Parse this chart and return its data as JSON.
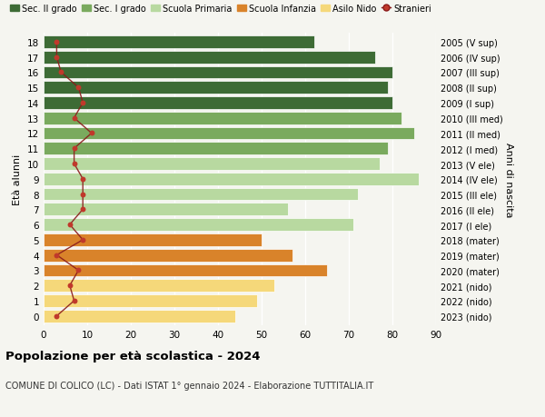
{
  "ages": [
    18,
    17,
    16,
    15,
    14,
    13,
    12,
    11,
    10,
    9,
    8,
    7,
    6,
    5,
    4,
    3,
    2,
    1,
    0
  ],
  "bar_values": [
    62,
    76,
    80,
    79,
    80,
    82,
    85,
    79,
    77,
    86,
    72,
    56,
    71,
    50,
    57,
    65,
    53,
    49,
    44
  ],
  "stranieri_values": [
    3,
    3,
    4,
    8,
    9,
    7,
    11,
    7,
    7,
    9,
    9,
    9,
    6,
    9,
    3,
    8,
    6,
    7,
    3
  ],
  "right_labels": [
    "2005 (V sup)",
    "2006 (IV sup)",
    "2007 (III sup)",
    "2008 (II sup)",
    "2009 (I sup)",
    "2010 (III med)",
    "2011 (II med)",
    "2012 (I med)",
    "2013 (V ele)",
    "2014 (IV ele)",
    "2015 (III ele)",
    "2016 (II ele)",
    "2017 (I ele)",
    "2018 (mater)",
    "2019 (mater)",
    "2020 (mater)",
    "2021 (nido)",
    "2022 (nido)",
    "2023 (nido)"
  ],
  "bar_colors": [
    "#3d6b35",
    "#3d6b35",
    "#3d6b35",
    "#3d6b35",
    "#3d6b35",
    "#7aaa5e",
    "#7aaa5e",
    "#7aaa5e",
    "#b8d9a0",
    "#b8d9a0",
    "#b8d9a0",
    "#b8d9a0",
    "#b8d9a0",
    "#d9832a",
    "#d9832a",
    "#d9832a",
    "#f5d87a",
    "#f5d87a",
    "#f5d87a"
  ],
  "legend_labels": [
    "Sec. II grado",
    "Sec. I grado",
    "Scuola Primaria",
    "Scuola Infanzia",
    "Asilo Nido",
    "Stranieri"
  ],
  "legend_colors": [
    "#3d6b35",
    "#7aaa5e",
    "#b8d9a0",
    "#d9832a",
    "#f5d87a",
    "#c0392b"
  ],
  "stranieri_color": "#c0392b",
  "stranieri_line_color": "#8b1a1a",
  "ylabel_left": "Età alunni",
  "ylabel_right": "Anni di nascita",
  "title": "Popolazione per età scolastica - 2024",
  "subtitle": "COMUNE DI COLICO (LC) - Dati ISTAT 1° gennaio 2024 - Elaborazione TUTTITALIA.IT",
  "xlim": [
    0,
    90
  ],
  "xticks": [
    0,
    10,
    20,
    30,
    40,
    50,
    60,
    70,
    80,
    90
  ],
  "background_color": "#f5f5f0",
  "grid_color": "#ffffff"
}
